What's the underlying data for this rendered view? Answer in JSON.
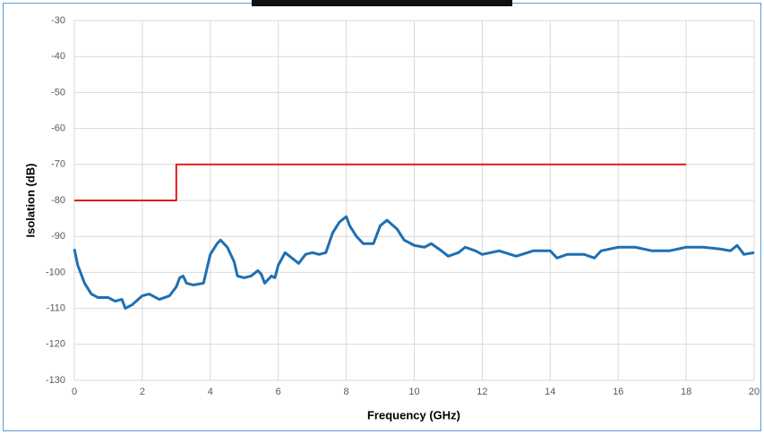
{
  "chart_data": {
    "type": "line",
    "xlabel": "Frequency (GHz)",
    "ylabel": "Isolation (dB)",
    "xlim": [
      0,
      20
    ],
    "ylim": [
      -130,
      -30
    ],
    "xticks": [
      0,
      2,
      4,
      6,
      8,
      10,
      12,
      14,
      16,
      18,
      20
    ],
    "yticks": [
      -130,
      -120,
      -110,
      -100,
      -90,
      -80,
      -70,
      -60,
      -50,
      -40,
      -30
    ],
    "grid": true,
    "series": [
      {
        "color": "#1f6fb2",
        "x": [
          0,
          0.1,
          0.3,
          0.5,
          0.7,
          1.0,
          1.2,
          1.4,
          1.5,
          1.7,
          2.0,
          2.2,
          2.5,
          2.8,
          3.0,
          3.1,
          3.2,
          3.3,
          3.5,
          3.8,
          3.9,
          4.0,
          4.2,
          4.3,
          4.5,
          4.7,
          4.8,
          5.0,
          5.2,
          5.4,
          5.5,
          5.6,
          5.8,
          5.9,
          6.0,
          6.2,
          6.4,
          6.6,
          6.8,
          7.0,
          7.2,
          7.4,
          7.6,
          7.8,
          8.0,
          8.1,
          8.3,
          8.5,
          8.8,
          9.0,
          9.2,
          9.5,
          9.7,
          10.0,
          10.3,
          10.5,
          10.8,
          11.0,
          11.3,
          11.5,
          11.8,
          12.0,
          12.5,
          13.0,
          13.5,
          14.0,
          14.2,
          14.5,
          15.0,
          15.3,
          15.5,
          16.0,
          16.5,
          17.0,
          17.5,
          18.0,
          18.5,
          19.0,
          19.3,
          19.5,
          19.7,
          20.0
        ],
        "values": [
          -93.5,
          -98,
          -103,
          -106,
          -107,
          -107,
          -108,
          -107.5,
          -110,
          -109,
          -106.5,
          -106,
          -107.5,
          -106.5,
          -104,
          -101.5,
          -101,
          -103,
          -103.5,
          -103,
          -99,
          -95,
          -92,
          -91,
          -93,
          -97,
          -101,
          -101.5,
          -101,
          -99.5,
          -100.5,
          -103,
          -101,
          -101.5,
          -98,
          -94.5,
          -96,
          -97.5,
          -95,
          -94.5,
          -95,
          -94.5,
          -89,
          -86,
          -84.5,
          -87,
          -90,
          -92,
          -92,
          -87,
          -85.5,
          -88,
          -91,
          -92.5,
          -93,
          -92,
          -94,
          -95.5,
          -94.5,
          -93,
          -94,
          -95,
          -94,
          -95.5,
          -94,
          -94,
          -96,
          -95,
          -95,
          -96,
          -94,
          -93,
          -93,
          -94,
          -94,
          -93,
          -93,
          -93.5,
          -94,
          -92.5,
          -95,
          -94.5
        ]
      },
      {
        "color": "#e31a1c",
        "x": [
          0,
          3,
          3,
          18
        ],
        "values": [
          -80,
          -80,
          -70,
          -70
        ]
      }
    ]
  }
}
